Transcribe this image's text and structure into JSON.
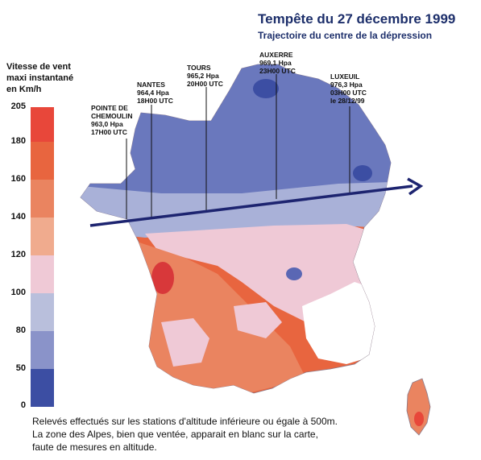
{
  "title": "Tempête du 27 décembre 1999",
  "subtitle": "Trajectoire du centre de la dépression",
  "legend": {
    "title_lines": [
      "Vitesse de vent",
      "maxi instantané",
      "en Km/h"
    ],
    "ticks": [
      "205",
      "180",
      "160",
      "140",
      "120",
      "100",
      "80",
      "50",
      "0"
    ],
    "band_colors": [
      "#e8473a",
      "#e8653f",
      "#ea8460",
      "#f0ab8e",
      "#efc9d6",
      "#b9bfdc",
      "#8a93c9",
      "#5a67b4",
      "#3c4ea3"
    ]
  },
  "stations": [
    {
      "lines": [
        "POINTE DE",
        "CHEMOULIN",
        "963,0 Hpa",
        "17H00 UTC"
      ]
    },
    {
      "lines": [
        "NANTES",
        "964,4 Hpa",
        "18H00 UTC"
      ]
    },
    {
      "lines": [
        "TOURS",
        "965,2 Hpa",
        "20H00 UTC"
      ]
    },
    {
      "lines": [
        "AUXERRE",
        "969,1 Hpa",
        "23H00 UTC"
      ]
    },
    {
      "lines": [
        "LUXEUIL",
        "976,3 Hpa",
        "03H00 UTC",
        "le 28/12/99"
      ]
    }
  ],
  "footnote_lines": [
    "Relevés effectués sur les stations d'altitude inférieure ou égale à 500m.",
    "La zone des Alpes, bien que ventée, apparait en blanc sur la carte,",
    "faute de mesures en altitude."
  ],
  "colors": {
    "track": "#1d2470",
    "title": "#1d2f6b"
  }
}
